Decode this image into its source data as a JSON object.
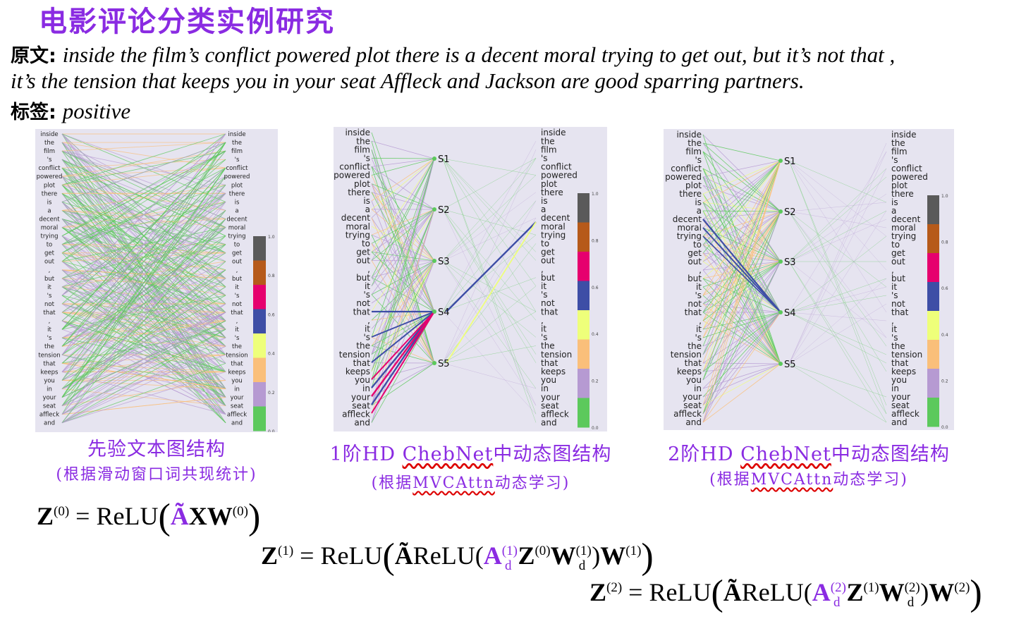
{
  "title": "电影评论分类实例研究",
  "original": {
    "label": "原文:",
    "line1": "inside the film’s conflict powered plot there is a decent moral trying to get out, but it’s not that ,",
    "line2": "it’s the tension that keeps you in your seat Affleck and Jackson are good sparring partners."
  },
  "tag": {
    "label": "标签:",
    "value": "positive"
  },
  "tokens": [
    "inside",
    "the",
    "film",
    "'s",
    "conflict",
    "powered",
    "plot",
    "there",
    "is",
    "a",
    "decent",
    "moral",
    "trying",
    "to",
    "get",
    "out",
    ",",
    "but",
    "it",
    "'s",
    "not",
    "that",
    ",",
    "it",
    "'s",
    "the",
    "tension",
    "that",
    "keeps",
    "you",
    "in",
    "your",
    "seat",
    "affleck",
    "and"
  ],
  "sentence_nodes": [
    "S1",
    "S2",
    "S3",
    "S4",
    "S5"
  ],
  "colorbar": {
    "ticks": [
      "1.0",
      "0.8",
      "0.6",
      "0.4",
      "0.2",
      "0.0"
    ],
    "colors": [
      "#5a5a5a",
      "#b65a1a",
      "#e6006e",
      "#3e4ea6",
      "#eeff7a",
      "#fabf7a",
      "#b69ad2",
      "#5cc95c"
    ]
  },
  "edge_colors": {
    "green": "#5cc95c",
    "purple": "#b69ad2",
    "orange": "#fabf7a",
    "yellow": "#eeff7a",
    "blue": "#3e4ea6",
    "magenta": "#e6006e"
  },
  "captions": {
    "panel1_main": "先验文本图结构",
    "panel1_sub": "(根据滑动窗口词共现统计)",
    "panel2_prefix": "1阶HD ",
    "panel2_mid": "ChebNet",
    "panel2_suffix": "中动态图结构",
    "panel3_prefix": "2阶HD ",
    "panel3_mid": "ChebNet",
    "panel3_suffix": "中动态图结构",
    "sub_prefix": "(根据",
    "sub_mid": "MVCAttn",
    "sub_suffix": "动态学习)"
  },
  "equations": {
    "relu": "ReLU",
    "z0_sup": "(0)",
    "z1_sup": "(1)",
    "z2_sup": "(2)",
    "w0_sup": "(0)",
    "w1_sup": "(1)",
    "w2_sup": "(2)",
    "d_sub": "d"
  }
}
